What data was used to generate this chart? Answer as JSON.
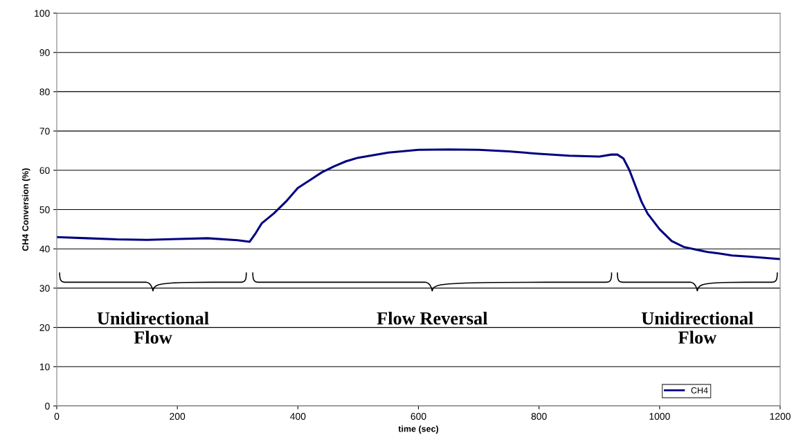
{
  "chart_data": {
    "type": "line",
    "xlabel": "time (sec)",
    "ylabel": "CH4 Conversion (%)",
    "xlim": [
      0,
      1200
    ],
    "xticks": [
      0,
      200,
      400,
      600,
      800,
      1000,
      1200
    ],
    "ylim": [
      0,
      100
    ],
    "yticks": [
      0,
      10,
      20,
      30,
      40,
      50,
      60,
      70,
      80,
      90,
      100
    ],
    "grid": "y",
    "legend": "bottom right",
    "marker": "none",
    "line_style": "solid",
    "series": [
      {
        "name": "CH4",
        "color": "#000080",
        "x": [
          0,
          50,
          100,
          150,
          200,
          250,
          300,
          320,
          330,
          340,
          360,
          380,
          400,
          420,
          440,
          460,
          480,
          500,
          550,
          600,
          650,
          700,
          750,
          800,
          850,
          900,
          920,
          930,
          940,
          950,
          960,
          970,
          980,
          1000,
          1020,
          1040,
          1060,
          1080,
          1100,
          1120,
          1150,
          1200
        ],
        "values": [
          43,
          42.7,
          42.4,
          42.3,
          42.5,
          42.7,
          42.2,
          41.8,
          44,
          46.5,
          49,
          52,
          55.5,
          57.5,
          59.5,
          61,
          62.3,
          63.2,
          64.5,
          65.2,
          65.3,
          65.2,
          64.8,
          64.2,
          63.7,
          63.5,
          64,
          64,
          63,
          60,
          56,
          52,
          49,
          45,
          42,
          40.5,
          39.8,
          39.2,
          38.8,
          38.3,
          38,
          37.4
        ]
      }
    ],
    "annotations": [
      "Unidirectional\nFlow",
      "Flow Reversal",
      "Unidirectional\nFlow"
    ]
  }
}
